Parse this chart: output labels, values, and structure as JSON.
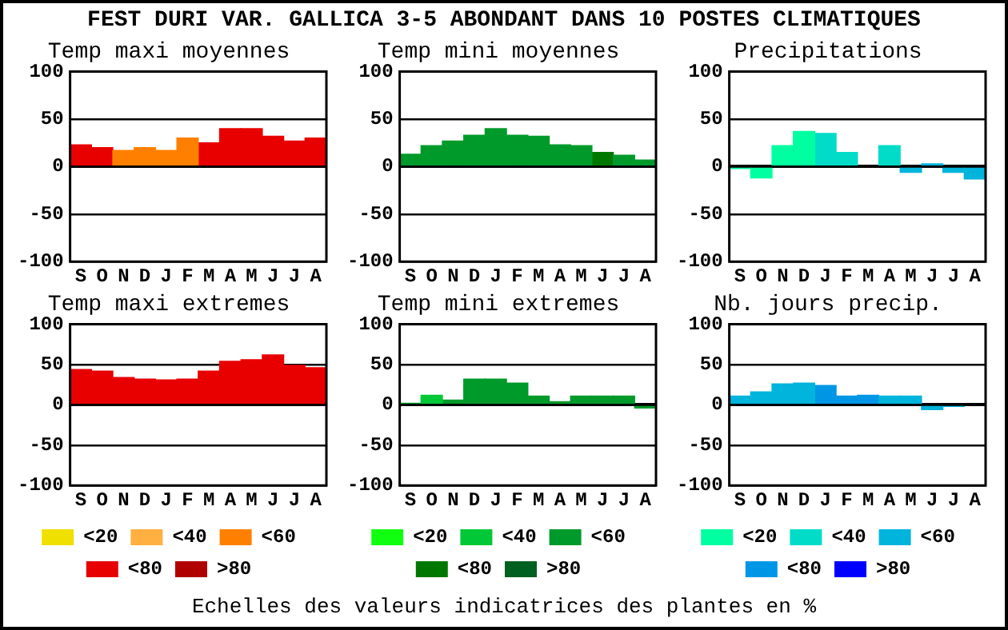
{
  "chart_data": [
    {
      "type": "bar",
      "title": "Temp maxi moyennes",
      "annotations": [
        "FEST DURI VAR. GALLICA  3-5 ABONDANT DANS  10 POSTES CLIMATIQUES"
      ],
      "categories": [
        "S",
        "O",
        "N",
        "D",
        "J",
        "F",
        "M",
        "A",
        "M",
        "J",
        "J",
        "A"
      ],
      "stacked": true,
      "ylim": [
        -100,
        100
      ],
      "yticks": [
        -100,
        -50,
        0,
        50,
        100
      ],
      "grid": "y",
      "series": [
        {
          "color": "#ff8000",
          "values": [
            null,
            null,
            17,
            20,
            17,
            30,
            null,
            null,
            null,
            null,
            null,
            null
          ]
        },
        {
          "color": "#e80000",
          "values": [
            23,
            20,
            null,
            null,
            null,
            null,
            25,
            40,
            40,
            32,
            27,
            30
          ]
        }
      ]
    },
    {
      "type": "bar",
      "title": "Temp mini moyennes",
      "categories": [
        "S",
        "O",
        "N",
        "D",
        "J",
        "F",
        "M",
        "A",
        "M",
        "J",
        "J",
        "A"
      ],
      "stacked": true,
      "ylim": [
        -100,
        100
      ],
      "yticks": [
        -100,
        -50,
        0,
        50,
        100
      ],
      "grid": "y",
      "series": [
        {
          "color": "#009a2a",
          "values": [
            13,
            22,
            27,
            33,
            40,
            33,
            32,
            23,
            22,
            null,
            12,
            7
          ]
        },
        {
          "color": "#007800",
          "values": [
            null,
            null,
            null,
            null,
            null,
            null,
            null,
            null,
            null,
            15,
            null,
            null
          ]
        }
      ]
    },
    {
      "type": "bar",
      "title": "Precipitations",
      "categories": [
        "S",
        "O",
        "N",
        "D",
        "J",
        "F",
        "M",
        "A",
        "M",
        "J",
        "J",
        "A"
      ],
      "stacked": true,
      "ylim": [
        -100,
        100
      ],
      "yticks": [
        -100,
        -50,
        0,
        50,
        100
      ],
      "grid": "y",
      "series": [
        {
          "color": "#00ffa0",
          "values": [
            -2,
            -12,
            22,
            37,
            null,
            null,
            null,
            null,
            null,
            null,
            null,
            null
          ]
        },
        {
          "color": "#00dcc8",
          "values": [
            null,
            null,
            null,
            null,
            35,
            15,
            null,
            22,
            null,
            null,
            null,
            null
          ]
        },
        {
          "color": "#00b4dc",
          "values": [
            null,
            null,
            null,
            null,
            null,
            null,
            null,
            null,
            -6,
            3,
            -6,
            -13
          ]
        }
      ]
    },
    {
      "type": "bar",
      "title": "Temp maxi extremes",
      "categories": [
        "S",
        "O",
        "N",
        "D",
        "J",
        "F",
        "M",
        "A",
        "M",
        "J",
        "J",
        "A"
      ],
      "stacked": true,
      "ylim": [
        -100,
        100
      ],
      "yticks": [
        -100,
        -50,
        0,
        50,
        100
      ],
      "grid": "y",
      "legend": "bottom",
      "series": [
        {
          "name": "<20",
          "color": "#f0e000",
          "values": [
            null,
            null,
            null,
            null,
            null,
            null,
            null,
            null,
            null,
            null,
            null,
            null
          ]
        },
        {
          "name": "<40",
          "color": "#ffb040",
          "values": [
            null,
            null,
            null,
            null,
            null,
            null,
            null,
            null,
            null,
            null,
            null,
            null
          ]
        },
        {
          "name": "<60",
          "color": "#ff8000",
          "values": [
            null,
            null,
            null,
            null,
            null,
            null,
            null,
            null,
            null,
            null,
            null,
            null
          ]
        },
        {
          "name": "<80",
          "color": "#e80000",
          "values": [
            44,
            42,
            34,
            32,
            31,
            32,
            42,
            54,
            56,
            62,
            49,
            46
          ]
        },
        {
          "name": ">80",
          "color": "#b00000",
          "values": [
            null,
            null,
            null,
            null,
            null,
            null,
            null,
            null,
            null,
            null,
            null,
            null
          ]
        }
      ]
    },
    {
      "type": "bar",
      "title": "Temp mini extremes",
      "categories": [
        "S",
        "O",
        "N",
        "D",
        "J",
        "F",
        "M",
        "A",
        "M",
        "J",
        "J",
        "A"
      ],
      "stacked": true,
      "ylim": [
        -100,
        100
      ],
      "yticks": [
        -100,
        -50,
        0,
        50,
        100
      ],
      "grid": "y",
      "legend": "bottom",
      "series": [
        {
          "name": "<20",
          "color": "#10ff10",
          "values": [
            null,
            null,
            null,
            null,
            null,
            null,
            null,
            null,
            null,
            null,
            null,
            null
          ]
        },
        {
          "name": "<40",
          "color": "#00c837",
          "values": [
            null,
            12,
            null,
            null,
            null,
            null,
            null,
            null,
            null,
            null,
            null,
            null
          ]
        },
        {
          "name": "<60",
          "color": "#009a2a",
          "values": [
            2,
            null,
            6,
            32,
            32,
            27,
            11,
            4,
            11,
            11,
            11,
            -4
          ]
        },
        {
          "name": "<80",
          "color": "#007800",
          "values": [
            null,
            null,
            null,
            null,
            null,
            null,
            null,
            null,
            null,
            null,
            null,
            null
          ]
        },
        {
          "name": ">80",
          "color": "#006020",
          "values": [
            null,
            null,
            null,
            null,
            null,
            null,
            null,
            null,
            null,
            null,
            null,
            null
          ]
        }
      ]
    },
    {
      "type": "bar",
      "title": "Nb. jours precip.",
      "annotations": [
        "Echelles des valeurs indicatrices des plantes en %"
      ],
      "categories": [
        "S",
        "O",
        "N",
        "D",
        "J",
        "F",
        "M",
        "A",
        "M",
        "J",
        "J",
        "A"
      ],
      "stacked": true,
      "ylim": [
        -100,
        100
      ],
      "yticks": [
        -100,
        -50,
        0,
        50,
        100
      ],
      "grid": "y",
      "legend": "bottom",
      "series": [
        {
          "name": "<20",
          "color": "#00ffa0",
          "values": [
            null,
            null,
            null,
            null,
            null,
            null,
            null,
            null,
            null,
            null,
            null,
            null
          ]
        },
        {
          "name": "<40",
          "color": "#00dcc8",
          "values": [
            null,
            null,
            null,
            null,
            null,
            null,
            null,
            null,
            null,
            null,
            null,
            null
          ]
        },
        {
          "name": "<60",
          "color": "#00b4dc",
          "values": [
            11,
            16,
            26,
            27,
            null,
            null,
            null,
            11,
            11,
            -6,
            -2,
            null
          ]
        },
        {
          "name": "<80",
          "color": "#0096e6",
          "values": [
            null,
            null,
            null,
            null,
            24,
            11,
            12,
            null,
            null,
            null,
            null,
            null
          ]
        },
        {
          "name": ">80",
          "color": "#0000ff",
          "values": [
            null,
            null,
            null,
            null,
            null,
            null,
            null,
            null,
            null,
            null,
            null,
            null
          ]
        }
      ]
    }
  ]
}
